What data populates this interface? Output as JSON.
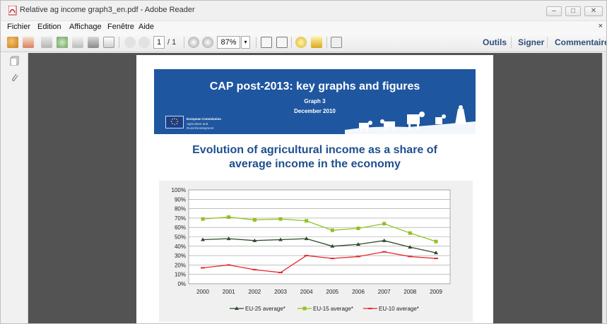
{
  "window": {
    "title": "Relative ag income graph3_en.pdf - Adobe Reader",
    "controls": [
      "–",
      "□",
      "✕"
    ]
  },
  "menu": {
    "items": [
      "Fichier",
      "Edition",
      "Affichage",
      "Fenêtre",
      "Aide"
    ],
    "close": "×"
  },
  "toolbar": {
    "page_current": "1",
    "page_total": "/ 1",
    "zoom": "87%",
    "links": [
      "Outils",
      "Signer",
      "Commentaire"
    ]
  },
  "banner": {
    "title": "CAP post-2013: key graphs and figures",
    "subtitle": "Graph 3",
    "date": "December 2010",
    "org": "European Commission",
    "dept_line1": "Agriculture and",
    "dept_line2": "Rural Development"
  },
  "document": {
    "heading_line1": "Evolution of agricultural income as a share of",
    "heading_line2": "average income in the economy"
  },
  "colors": {
    "banner_blue": "#1f56a0",
    "heading_blue": "#1f4f8f",
    "eu25": "#2e4a2b",
    "eu15": "#92c020",
    "eu10": "#e8262b"
  },
  "chart_data": {
    "type": "line",
    "title": "",
    "xlabel": "",
    "ylabel": "",
    "x": [
      "2000",
      "2001",
      "2002",
      "2003",
      "2004",
      "2005",
      "2006",
      "2007",
      "2008",
      "2009"
    ],
    "ylim": [
      0,
      100
    ],
    "yticks": [
      "0%",
      "10%",
      "20%",
      "30%",
      "40%",
      "50%",
      "60%",
      "70%",
      "80%",
      "90%",
      "100%"
    ],
    "grid": true,
    "legend_position": "bottom",
    "series": [
      {
        "name": "EU-25 average*",
        "color": "#2e4a2b",
        "marker": "triangle",
        "values": [
          47,
          48,
          46,
          47,
          48,
          40,
          42,
          46,
          39,
          33
        ]
      },
      {
        "name": "EU-15 average*",
        "color": "#92c020",
        "marker": "square",
        "values": [
          69,
          71,
          68,
          69,
          67,
          57,
          59,
          64,
          54,
          45
        ]
      },
      {
        "name": "EU-10 average*",
        "color": "#e8262b",
        "marker": "dash",
        "values": [
          17,
          20,
          15,
          12,
          30,
          27,
          29,
          34,
          29,
          27
        ]
      }
    ]
  }
}
